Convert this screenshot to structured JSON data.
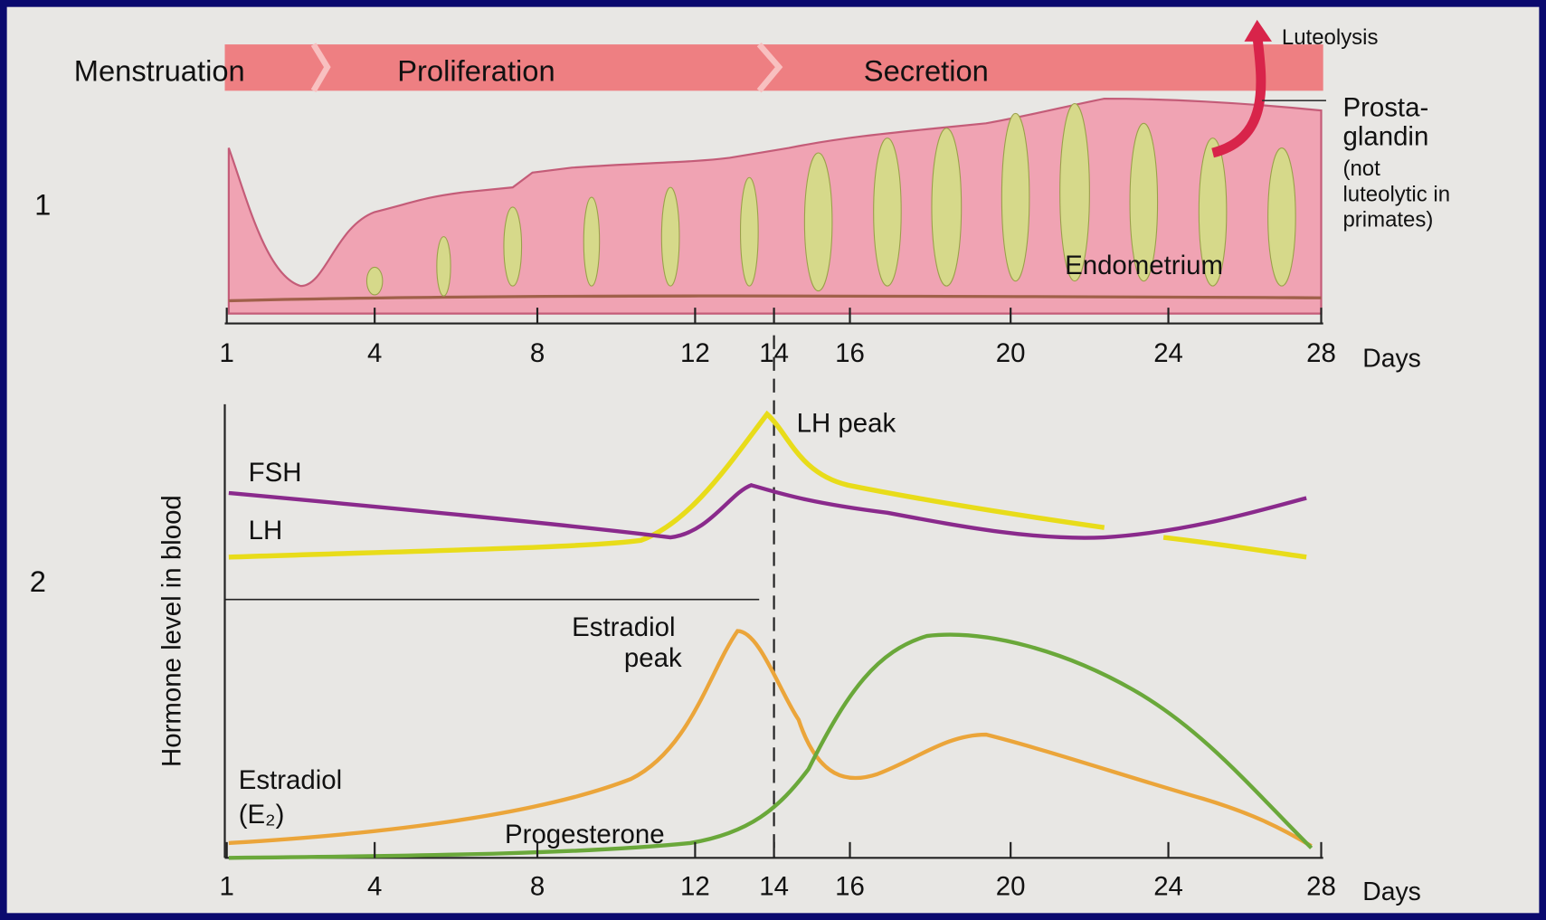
{
  "panel1": {
    "number": "1",
    "phases": [
      "Menstruation",
      "Proliferation",
      "Secretion"
    ],
    "luteolysis": "Luteolysis",
    "prostaglandin": [
      "Prosta-",
      "glandin",
      "(not",
      "luteolytic in",
      "primates)"
    ],
    "endometrium": "Endometrium",
    "axis": {
      "ticks": [
        1,
        4,
        8,
        12,
        14,
        16,
        20,
        24,
        28
      ],
      "unit": "Days"
    }
  },
  "panel2": {
    "number": "2",
    "y_label": "Hormone level in blood",
    "fsh": "FSH",
    "lh": "LH",
    "lh_peak": "LH peak",
    "estradiol_peak": [
      "Estradiol",
      "peak"
    ],
    "estradiol": [
      "Estradiol",
      "(E₂)"
    ],
    "progesterone": "Progesterone",
    "axis": {
      "ticks": [
        1,
        4,
        8,
        12,
        14,
        16,
        20,
        24,
        28
      ],
      "unit": "Days"
    }
  }
}
